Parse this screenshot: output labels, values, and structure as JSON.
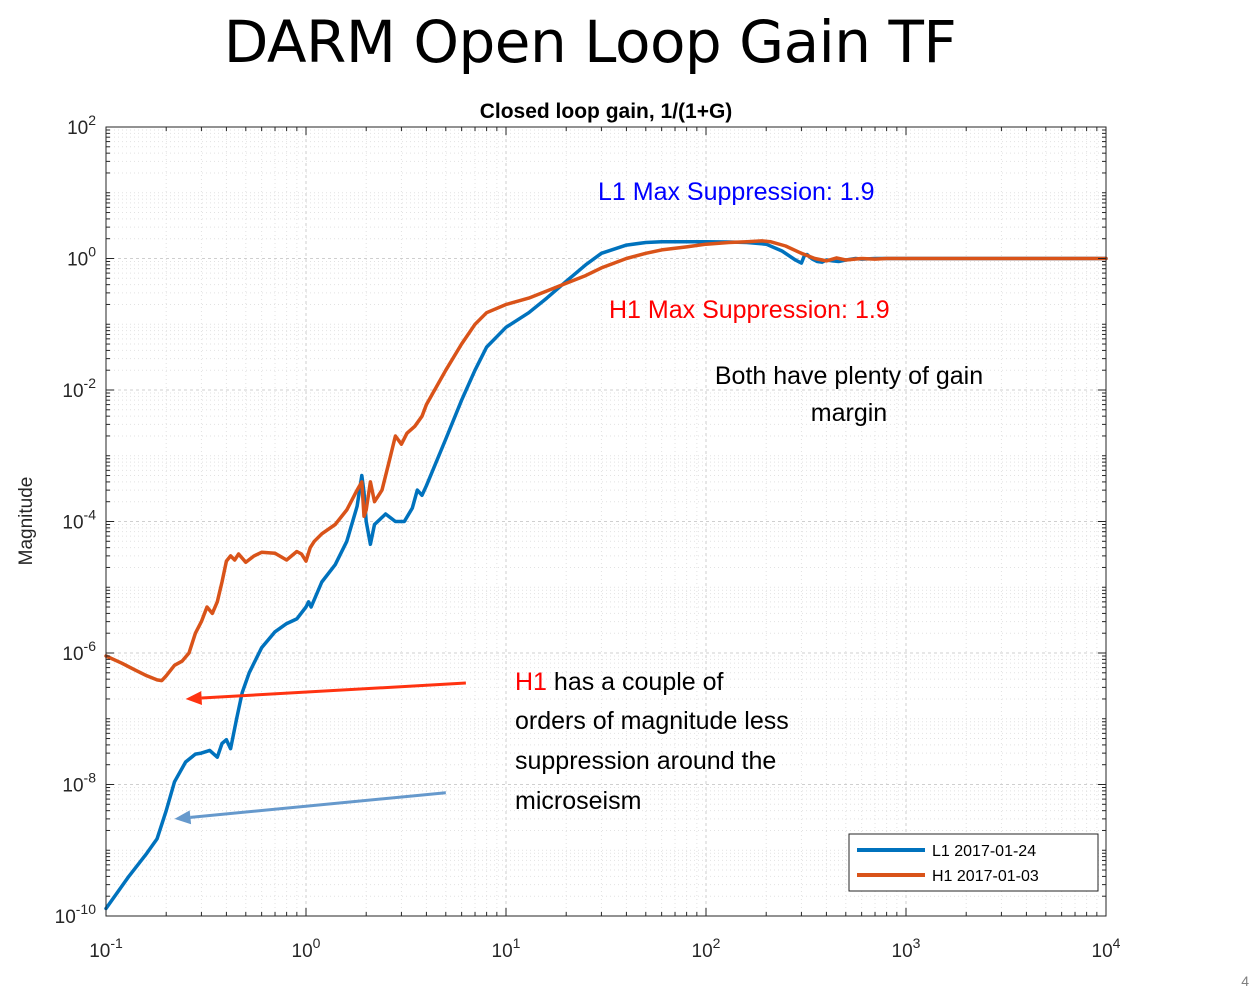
{
  "slide": {
    "title": "DARM Open Loop Gain TF",
    "page_number": "4"
  },
  "chart_data": {
    "type": "line",
    "title": "Closed loop gain, 1/(1+G)",
    "xlabel": "",
    "ylabel": "Magnitude",
    "xscale": "log",
    "yscale": "log",
    "xlim": [
      0.1,
      10000
    ],
    "ylim": [
      1e-10,
      100
    ],
    "grid": true,
    "x_ticks": [
      {
        "value": 0.1,
        "base": "10",
        "exp": "-1"
      },
      {
        "value": 1,
        "base": "10",
        "exp": "0"
      },
      {
        "value": 10,
        "base": "10",
        "exp": "1"
      },
      {
        "value": 100,
        "base": "10",
        "exp": "2"
      },
      {
        "value": 1000,
        "base": "10",
        "exp": "3"
      },
      {
        "value": 10000,
        "base": "10",
        "exp": "4"
      }
    ],
    "y_ticks": [
      {
        "value": 1e-10,
        "base": "10",
        "exp": "-10"
      },
      {
        "value": 1e-08,
        "base": "10",
        "exp": "-8"
      },
      {
        "value": 1e-06,
        "base": "10",
        "exp": "-6"
      },
      {
        "value": 0.0001,
        "base": "10",
        "exp": "-4"
      },
      {
        "value": 0.01,
        "base": "10",
        "exp": "-2"
      },
      {
        "value": 1,
        "base": "10",
        "exp": "0"
      },
      {
        "value": 100,
        "base": "10",
        "exp": "2"
      }
    ],
    "legend": {
      "placement": "bottom-right",
      "entries": [
        "L1 2017-01-24",
        "H1 2017-01-03"
      ]
    },
    "series": [
      {
        "name": "L1 2017-01-24",
        "color": "#0072BD",
        "x": [
          0.1,
          0.13,
          0.16,
          0.18,
          0.2,
          0.22,
          0.25,
          0.28,
          0.3,
          0.33,
          0.36,
          0.38,
          0.4,
          0.42,
          0.45,
          0.48,
          0.52,
          0.6,
          0.7,
          0.8,
          0.9,
          1.0,
          1.03,
          1.06,
          1.1,
          1.2,
          1.4,
          1.6,
          1.8,
          1.9,
          1.95,
          2.0,
          2.1,
          2.2,
          2.5,
          2.8,
          3.1,
          3.4,
          3.6,
          3.8,
          4.0,
          5.0,
          6.0,
          7.0,
          8.0,
          10.0,
          13.0,
          16.0,
          20.0,
          25.0,
          30.0,
          40.0,
          50.0,
          60.0,
          80.0,
          100.0,
          130.0,
          160.0,
          200.0,
          240.0,
          280.0,
          300.0,
          310.0,
          320.0,
          340.0,
          360.0,
          380.0,
          400.0,
          430.0,
          460.0,
          500.0,
          560.0,
          600.0,
          700.0,
          800.0,
          1000.0,
          2000.0,
          5000.0,
          10000.0
        ],
        "y": [
          1.3e-10,
          4e-10,
          9e-10,
          1.5e-09,
          4e-09,
          1.1e-08,
          2.2e-08,
          2.9e-08,
          3e-08,
          3.3e-08,
          2.6e-08,
          4.2e-08,
          4.8e-08,
          3.5e-08,
          1e-07,
          2.5e-07,
          5e-07,
          1.2e-06,
          2.1e-06,
          2.8e-06,
          3.3e-06,
          5e-06,
          6e-06,
          5e-06,
          6.5e-06,
          1.2e-05,
          2.2e-05,
          5e-05,
          0.00017,
          0.0005,
          0.00028,
          0.0001,
          4.5e-05,
          9e-05,
          0.00013,
          0.0001,
          0.0001,
          0.00016,
          0.0003,
          0.00025,
          0.00035,
          0.0018,
          0.007,
          0.02,
          0.045,
          0.09,
          0.15,
          0.25,
          0.45,
          0.8,
          1.2,
          1.6,
          1.75,
          1.8,
          1.8,
          1.8,
          1.78,
          1.75,
          1.65,
          1.3,
          0.95,
          0.85,
          1.1,
          1.15,
          0.98,
          0.9,
          0.88,
          0.95,
          0.92,
          0.9,
          0.95,
          1.0,
          0.98,
          1.0,
          1.0,
          1.0,
          1.0,
          1.0,
          1.0
        ]
      },
      {
        "name": "H1 2017-01-03",
        "color": "#D95319",
        "x": [
          0.1,
          0.12,
          0.14,
          0.16,
          0.18,
          0.19,
          0.2,
          0.22,
          0.24,
          0.26,
          0.28,
          0.3,
          0.32,
          0.34,
          0.36,
          0.38,
          0.4,
          0.42,
          0.44,
          0.46,
          0.5,
          0.55,
          0.6,
          0.7,
          0.8,
          0.9,
          0.95,
          1.0,
          1.05,
          1.1,
          1.2,
          1.4,
          1.6,
          1.8,
          1.9,
          1.95,
          2.0,
          2.1,
          2.2,
          2.4,
          2.6,
          2.8,
          3.0,
          3.2,
          3.5,
          3.8,
          4.0,
          5.0,
          6.0,
          7.0,
          8.0,
          10.0,
          13.0,
          16.0,
          20.0,
          25.0,
          30.0,
          40.0,
          50.0,
          60.0,
          80.0,
          100.0,
          130.0,
          160.0,
          190.0,
          210.0,
          250.0,
          300.0,
          350.0,
          400.0,
          450.0,
          500.0,
          600.0,
          700.0,
          800.0,
          1000.0,
          2000.0,
          5000.0,
          10000.0
        ],
        "y": [
          9e-07,
          7e-07,
          5.5e-07,
          4.5e-07,
          3.9e-07,
          3.8e-07,
          4.5e-07,
          6.5e-07,
          7.5e-07,
          1e-06,
          2e-06,
          3e-06,
          5e-06,
          4e-06,
          6e-06,
          1.2e-05,
          2.5e-05,
          3e-05,
          2.6e-05,
          3.2e-05,
          2.4e-05,
          3e-05,
          3.4e-05,
          3.3e-05,
          2.6e-05,
          3.5e-05,
          3.2e-05,
          2.5e-05,
          4e-05,
          5e-05,
          6.5e-05,
          9e-05,
          0.00015,
          0.0003,
          0.0004,
          0.00012,
          0.00015,
          0.0004,
          0.0002,
          0.0003,
          0.0008,
          0.002,
          0.0015,
          0.0022,
          0.0028,
          0.004,
          0.006,
          0.02,
          0.05,
          0.1,
          0.15,
          0.2,
          0.25,
          0.32,
          0.42,
          0.55,
          0.72,
          1.0,
          1.2,
          1.35,
          1.5,
          1.65,
          1.75,
          1.8,
          1.85,
          1.8,
          1.55,
          1.2,
          1.0,
          0.92,
          1.02,
          0.95,
          1.0,
          0.98,
          1.0,
          1.0,
          1.0,
          1.0,
          1.0
        ]
      }
    ],
    "annotations": [
      {
        "text": "L1 Max Suppression: 1.9",
        "color": "#0000FF"
      },
      {
        "text": "H1 Max Suppression: 1.9",
        "color": "#FF0000"
      },
      {
        "lines": [
          "Both have plenty of gain",
          "margin"
        ],
        "color": "#000000"
      },
      {
        "lines": [
          [
            {
              "text": "H1",
              "color": "#FF0000"
            },
            {
              "text": " has a couple of",
              "color": "#000000"
            }
          ],
          [
            {
              "text": "orders of magnitude less",
              "color": "#000000"
            }
          ],
          [
            {
              "text": "suppression around the",
              "color": "#000000"
            }
          ],
          [
            {
              "text": "microseism",
              "color": "#000000"
            }
          ]
        ]
      }
    ],
    "arrows": [
      {
        "from": [
          6.3,
          3.5e-07
        ],
        "to": [
          0.25,
          2e-07
        ],
        "color": "#FF3311"
      },
      {
        "from": [
          5.0,
          7.5e-09
        ],
        "to": [
          0.22,
          3e-09
        ],
        "color": "#6699CC"
      }
    ]
  }
}
